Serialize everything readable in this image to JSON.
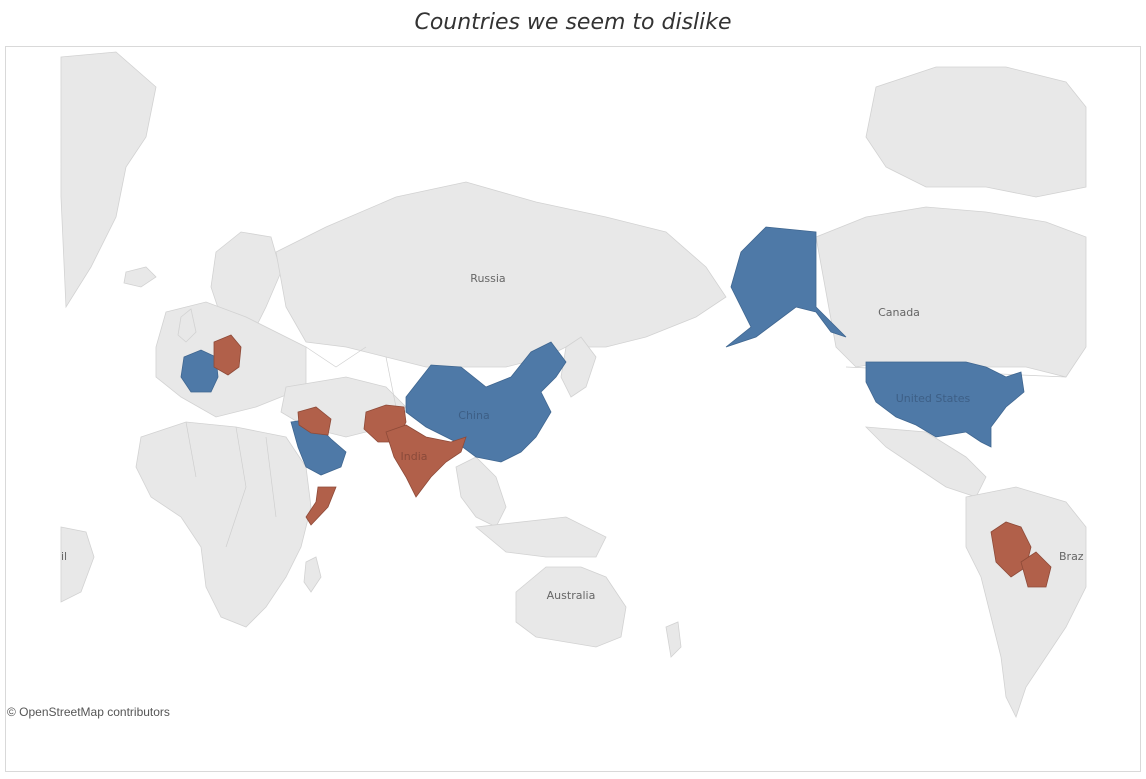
{
  "title": "Countries we seem to dislike",
  "attribution": "© OpenStreetMap contributors",
  "colors": {
    "land": "#e8e8e8",
    "liked": "#4e79a7",
    "disliked": "#b1604a"
  },
  "legend_categories": {
    "liked": "blue-highlight",
    "disliked": "red-highlight"
  },
  "labels": {
    "russia": "Russia",
    "canada": "Canada",
    "china": "China",
    "india": "India",
    "united_states": "United States",
    "australia": "Australia",
    "brazil_partial": "Braz",
    "left_edge_partial": "il"
  }
}
